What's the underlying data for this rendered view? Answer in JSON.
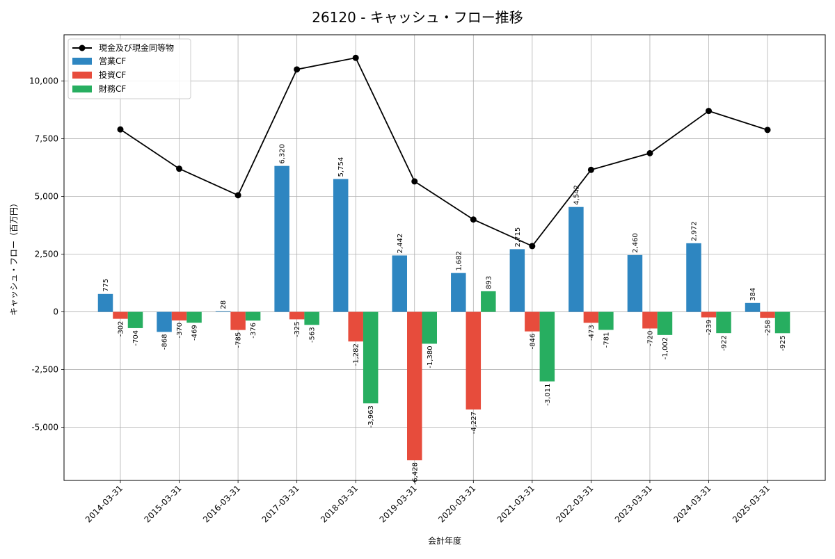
{
  "chart_data": {
    "type": "bar",
    "title": "26120 - キャッシュ・フロー推移",
    "xlabel": "会計年度",
    "ylabel": "キャッシュ・フロー（百万円）",
    "categories": [
      "2014-03-31",
      "2015-03-31",
      "2016-03-31",
      "2017-03-31",
      "2018-03-31",
      "2019-03-31",
      "2020-03-31",
      "2021-03-31",
      "2022-03-31",
      "2023-03-31",
      "2024-03-31",
      "2025-03-31"
    ],
    "ylim": [
      -7300,
      12000
    ],
    "yticks": [
      -5000,
      -2500,
      0,
      2500,
      5000,
      7500,
      10000
    ],
    "ytick_labels": [
      "-5,000",
      "-2,500",
      "0",
      "2,500",
      "5,000",
      "7,500",
      "10,000"
    ],
    "grid": true,
    "legend_position": "top-left",
    "series": [
      {
        "name": "営業CF",
        "kind": "bar",
        "color": "#2e86c1",
        "values": [
          775,
          -868,
          28,
          6320,
          5754,
          2442,
          1682,
          2715,
          4542,
          2460,
          2972,
          384
        ],
        "labels": [
          "775",
          "-868",
          "28",
          "6,320",
          "5,754",
          "2,442",
          "1,682",
          "2,715",
          "4,542",
          "2,460",
          "2,972",
          "384"
        ]
      },
      {
        "name": "投資CF",
        "kind": "bar",
        "color": "#e74c3c",
        "values": [
          -302,
          -370,
          -785,
          -325,
          -1282,
          -6428,
          -4227,
          -846,
          -473,
          -720,
          -239,
          -258
        ],
        "labels": [
          "-302",
          "-370",
          "-785",
          "-325",
          "-1,282",
          "-6,428",
          "-4,227",
          "-846",
          "-473",
          "-720",
          "-239",
          "-258"
        ]
      },
      {
        "name": "財務CF",
        "kind": "bar",
        "color": "#27ae60",
        "values": [
          -704,
          -469,
          -376,
          -563,
          -3963,
          -1380,
          893,
          -3011,
          -781,
          -1002,
          -922,
          -925
        ],
        "labels": [
          "-704",
          "-469",
          "-376",
          "-563",
          "-3,963",
          "-1,380",
          "893",
          "-3,011",
          "-781",
          "-1,002",
          "-922",
          "-925"
        ]
      },
      {
        "name": "現金及び現金同等物",
        "kind": "line",
        "color": "#000000",
        "values": [
          7900,
          6200,
          5050,
          10500,
          11000,
          5650,
          4000,
          2850,
          6150,
          6870,
          8700,
          7880
        ]
      }
    ]
  }
}
